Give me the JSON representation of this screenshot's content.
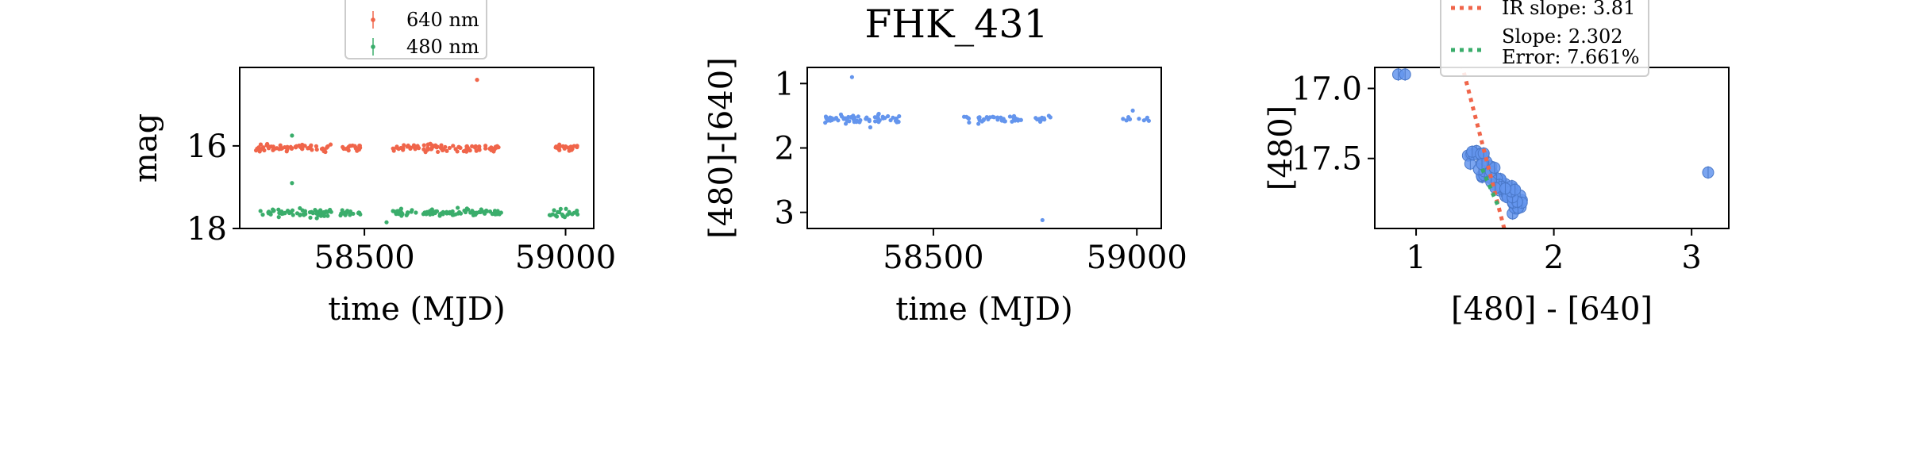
{
  "title": "FHK_431",
  "colors": {
    "red_band": "#f0654a",
    "green_band": "#3aad6b",
    "color_index": "#6495ed",
    "ir_line": "#f0654a",
    "fit_line": "#3aad6b",
    "axis": "#000000"
  },
  "chart_data": [
    {
      "type": "scatter",
      "name": "light-curve",
      "xlabel": "time (MJD)",
      "ylabel": "mag",
      "xlim": [
        58190,
        59070
      ],
      "ylim": [
        18.0,
        14.1
      ],
      "yinverted": true,
      "xticks": [
        58500,
        59000
      ],
      "yticks": [
        16,
        18
      ],
      "legend": {
        "placement": "top-center",
        "entries": [
          "640 nm",
          "480 nm"
        ]
      },
      "series": [
        {
          "name": "640 nm",
          "color": "#f0654a",
          "center": 16.05,
          "clusters": [
            [
              58230,
              58420,
              60
            ],
            [
              58440,
              58490,
              18
            ],
            [
              58570,
              58840,
              80
            ],
            [
              58960,
              59030,
              22
            ]
          ],
          "outliers": [
            [
              58780,
              14.4
            ]
          ]
        },
        {
          "name": "480 nm",
          "color": "#3aad6b",
          "center": 17.62,
          "clusters": [
            [
              58230,
              58420,
              60
            ],
            [
              58440,
              58490,
              18
            ],
            [
              58570,
              58840,
              80
            ],
            [
              58960,
              59030,
              22
            ]
          ],
          "outliers": [
            [
              58320,
              15.75
            ],
            [
              58320,
              16.9
            ],
            [
              58555,
              17.85
            ]
          ]
        }
      ]
    },
    {
      "type": "scatter",
      "name": "color-curve",
      "xlabel": "time (MJD)",
      "ylabel": "[480]-[640]",
      "xlim": [
        58190,
        59060
      ],
      "ylim": [
        3.25,
        0.75
      ],
      "yinverted": true,
      "xticks": [
        58500,
        59000
      ],
      "yticks": [
        1,
        2,
        3
      ],
      "series": [
        {
          "name": "",
          "color": "#6495ed",
          "center": 1.55,
          "clusters": [
            [
              58230,
              58420,
              70
            ],
            [
              58570,
              58720,
              40
            ],
            [
              58740,
              58790,
              10
            ],
            [
              58960,
              59030,
              10
            ]
          ],
          "outliers": [
            [
              58300,
              0.9
            ],
            [
              58345,
              1.68
            ],
            [
              58768,
              3.12
            ],
            [
              58990,
              1.42
            ]
          ]
        }
      ]
    },
    {
      "type": "scatter",
      "name": "color-magnitude",
      "xlabel": "[480] - [640]",
      "ylabel": "[480]",
      "xlim": [
        0.7,
        3.27
      ],
      "ylim": [
        18.0,
        16.85
      ],
      "yinverted": true,
      "xticks": [
        1,
        2,
        3
      ],
      "yticks": [
        17.0,
        17.5
      ],
      "legend": {
        "placement": "top-center",
        "entries": [
          "IR slope: 3.81",
          "Slope: 2.302",
          "Error: 7.661%"
        ]
      },
      "series": [
        {
          "name": "",
          "color": "#6495ed",
          "cluster": {
            "x": [
              1.4,
              1.75
            ],
            "y": [
              17.45,
              17.85
            ],
            "count": 70
          },
          "points": [
            [
              0.87,
              16.9
            ],
            [
              0.92,
              16.9
            ],
            [
              3.12,
              17.6
            ]
          ]
        }
      ],
      "lines": [
        {
          "label": "IR slope: 3.81",
          "slope": 3.81,
          "x": [
            1.3,
            1.65
          ],
          "y_at": [
            1.6,
            17.85
          ],
          "color": "#f0654a"
        },
        {
          "label": "Slope: 2.302",
          "slope": 2.302,
          "x": [
            1.48,
            1.6
          ],
          "y_at": [
            1.6,
            17.85
          ],
          "color": "#3aad6b"
        }
      ]
    }
  ]
}
